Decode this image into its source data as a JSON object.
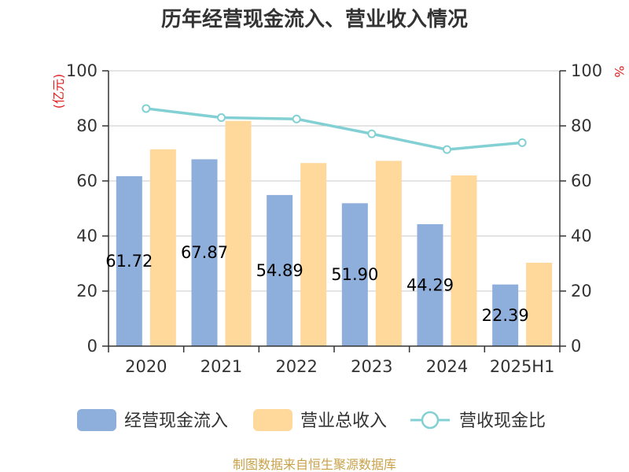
{
  "chart_data": {
    "type": "bar",
    "title": "历年经营现金流入、营业收入情况",
    "categories": [
      "2020",
      "2021",
      "2022",
      "2023",
      "2024",
      "2025H1"
    ],
    "series": [
      {
        "name": "经营现金流入",
        "kind": "bar",
        "axis": "left",
        "color": "#8eaedb",
        "values": [
          61.72,
          67.87,
          54.89,
          51.9,
          44.29,
          22.39
        ],
        "labels": [
          "61.72",
          "67.87",
          "54.89",
          "51.90",
          "44.29",
          "22.39"
        ]
      },
      {
        "name": "营业总收入",
        "kind": "bar",
        "axis": "left",
        "color": "#fed99b",
        "values": [
          71.5,
          81.8,
          66.5,
          67.3,
          62.0,
          30.3
        ]
      },
      {
        "name": "营收现金比",
        "kind": "line",
        "axis": "right",
        "color": "#83d0d4",
        "values": [
          86.3,
          83.0,
          82.5,
          77.1,
          71.4,
          73.9
        ]
      }
    ],
    "yleft": {
      "label": "(亿元)",
      "ylim": [
        0,
        100
      ],
      "ticks": [
        "0",
        "20",
        "40",
        "60",
        "80",
        "100"
      ]
    },
    "yright": {
      "label": "%",
      "ylim": [
        0,
        100
      ],
      "ticks": [
        "0",
        "20",
        "40",
        "60",
        "80",
        "100"
      ]
    },
    "grid": true,
    "legend_position": "bottom"
  },
  "footer": {
    "source": "制图数据来自恒生聚源数据库"
  }
}
